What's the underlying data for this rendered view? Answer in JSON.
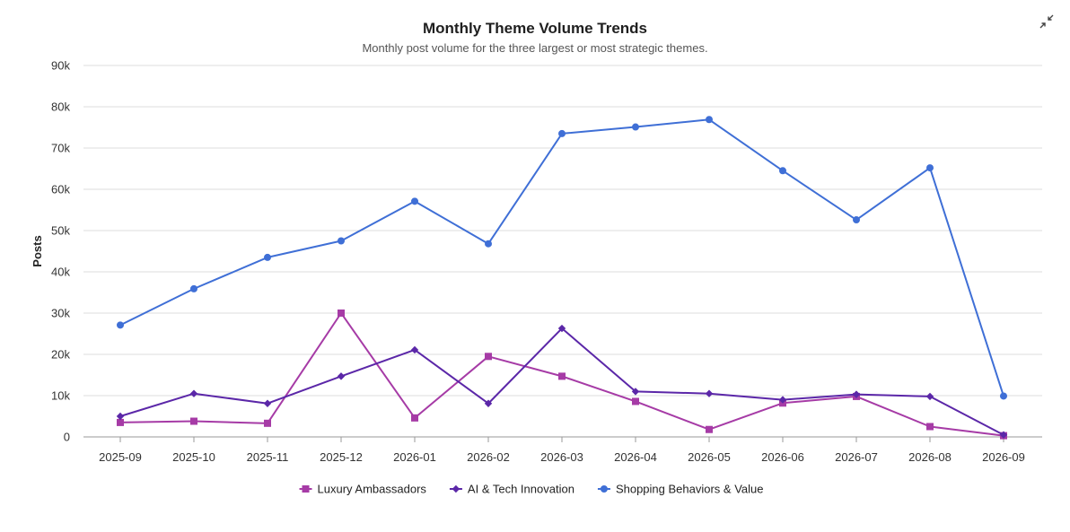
{
  "header": {
    "title": "Monthly Theme Volume Trends",
    "subtitle": "Monthly post volume for the three largest or most strategic themes.",
    "collapse_icon": "collapse-icon"
  },
  "chart_data": {
    "type": "line",
    "title": "Monthly Theme Volume Trends",
    "subtitle": "Monthly post volume for the three largest or most strategic themes.",
    "xlabel": "",
    "ylabel": "Posts",
    "ylim": [
      0,
      90000
    ],
    "yticks": [
      0,
      10000,
      20000,
      30000,
      40000,
      50000,
      60000,
      70000,
      80000,
      90000
    ],
    "ytick_labels": [
      "0",
      "10k",
      "20k",
      "30k",
      "40k",
      "50k",
      "60k",
      "70k",
      "80k",
      "90k"
    ],
    "grid": true,
    "legend_position": "bottom",
    "categories": [
      "2025-09",
      "2025-10",
      "2025-11",
      "2025-12",
      "2026-01",
      "2026-02",
      "2026-03",
      "2026-04",
      "2026-05",
      "2026-06",
      "2026-07",
      "2026-08",
      "2026-09"
    ],
    "series": [
      {
        "name": "Luxury Ambassadors",
        "color": "#a63ba6",
        "marker": "square",
        "values": [
          3500,
          3800,
          3300,
          30000,
          4600,
          19500,
          14700,
          8600,
          1800,
          8200,
          9800,
          2500,
          300
        ]
      },
      {
        "name": "AI & Tech Innovation",
        "color": "#5b27a8",
        "marker": "diamond",
        "values": [
          5000,
          10500,
          8100,
          14700,
          21100,
          8100,
          26300,
          11000,
          10500,
          9000,
          10300,
          9800,
          500
        ]
      },
      {
        "name": "Shopping Behaviors & Value",
        "color": "#3f6fd6",
        "marker": "circle",
        "values": [
          27100,
          35900,
          43500,
          47500,
          57100,
          46800,
          73500,
          75100,
          76900,
          64500,
          52600,
          65200,
          9900
        ]
      }
    ]
  }
}
